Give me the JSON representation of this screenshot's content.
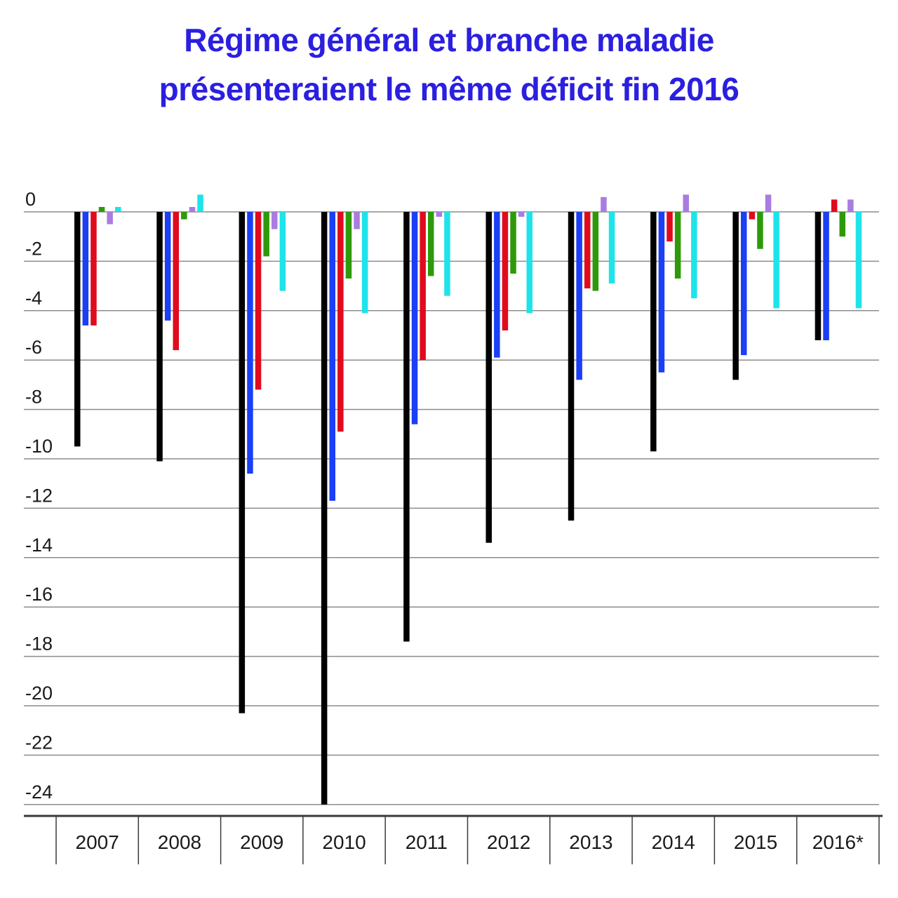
{
  "chart_data": {
    "type": "bar",
    "title_lines": [
      "Régime général et branche maladie",
      "présenteraient le même déficit fin 2016"
    ],
    "title_color": "#2b1fe0",
    "categories": [
      "2007",
      "2008",
      "2009",
      "2010",
      "2011",
      "2012",
      "2013",
      "2014",
      "2015",
      "2016*"
    ],
    "yticks": [
      0,
      -2,
      -4,
      -6,
      -8,
      -10,
      -12,
      -14,
      -16,
      -18,
      -20,
      -22,
      -24
    ],
    "ylim": [
      -24,
      0
    ],
    "grid": true,
    "legend": "none",
    "series": [
      {
        "color": "#000000",
        "values": [
          -9.5,
          -10.1,
          -20.3,
          -24.0,
          -17.4,
          -13.4,
          -12.5,
          -9.7,
          -6.8,
          -5.2
        ]
      },
      {
        "color": "#1a3ff5",
        "values": [
          -4.6,
          -4.4,
          -10.6,
          -11.7,
          -8.6,
          -5.9,
          -6.8,
          -6.5,
          -5.8,
          -5.2
        ]
      },
      {
        "color": "#e00b1c",
        "values": [
          -4.6,
          -5.6,
          -7.2,
          -8.9,
          -6.0,
          -4.8,
          -3.1,
          -1.2,
          -0.3,
          0.5
        ]
      },
      {
        "color": "#2e9a0a",
        "values": [
          0.2,
          -0.3,
          -1.8,
          -2.7,
          -2.6,
          -2.5,
          -3.2,
          -2.7,
          -1.5,
          -1.0
        ]
      },
      {
        "color": "#a97de0",
        "values": [
          -0.5,
          0.2,
          -0.7,
          -0.7,
          -0.2,
          -0.2,
          0.6,
          0.7,
          0.7,
          0.5
        ]
      },
      {
        "color": "#1ee3ea",
        "values": [
          0.2,
          0.7,
          -3.2,
          -4.1,
          -3.4,
          -4.1,
          -2.9,
          -3.5,
          -3.9,
          -3.9
        ]
      }
    ]
  }
}
